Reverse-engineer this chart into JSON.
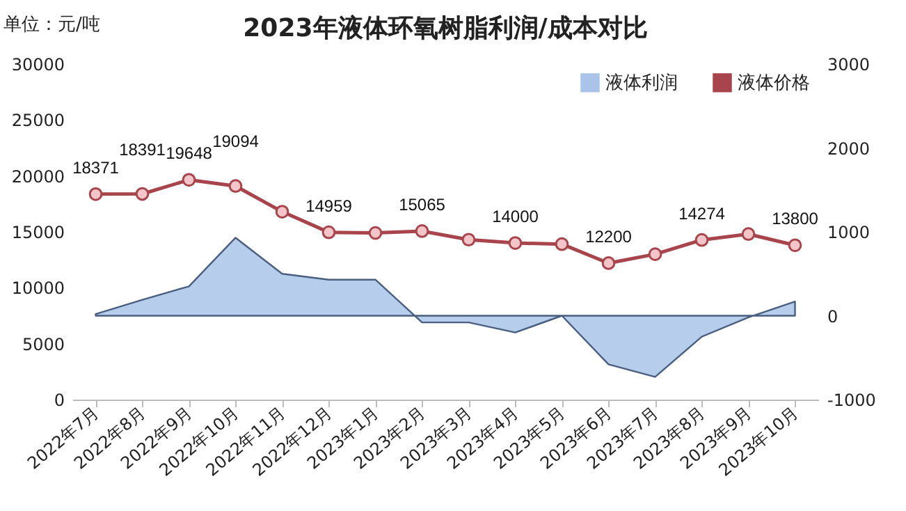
{
  "chart_data": {
    "type": "line",
    "title": "2023年液体环氧树脂利润/成本对比",
    "ylabel": "单位：元/吨",
    "categories": [
      "2022年7月",
      "2022年8月",
      "2022年9月",
      "2022年10月",
      "2022年11月",
      "2022年12月",
      "2023年1月",
      "2023年2月",
      "2023年3月",
      "2023年4月",
      "2023年5月",
      "2023年6月",
      "2023年7月",
      "2023年8月",
      "2023年9月",
      "2023年10月"
    ],
    "series": [
      {
        "name": "液体利润",
        "type": "area",
        "axis": "y2",
        "marker": "none",
        "color": "#a9c4e8",
        "values": [
          20,
          190,
          350,
          930,
          500,
          430,
          430,
          -80,
          -80,
          -200,
          0,
          -580,
          -730,
          -250,
          -20,
          170
        ]
      },
      {
        "name": "液体价格",
        "color": "#a8454c",
        "values": [
          18371,
          18391,
          19648,
          19094,
          16800,
          14959,
          14900,
          15065,
          14300,
          14000,
          13900,
          12200,
          13000,
          14274,
          14800,
          13800
        ],
        "value_labels": [
          "18371",
          "18391",
          "19648",
          "19094",
          null,
          "14959",
          null,
          "15065",
          null,
          "14000",
          null,
          "12200",
          null,
          "14274",
          null,
          "13800"
        ]
      }
    ],
    "ylim": [
      0,
      30000
    ],
    "yticks": [
      0,
      5000,
      10000,
      15000,
      20000,
      25000,
      30000
    ],
    "y2lim": [
      -1000,
      3000
    ],
    "y2ticks": [
      -1000,
      0,
      1000,
      2000,
      3000
    ],
    "legend": "top right",
    "marker": "circle"
  }
}
